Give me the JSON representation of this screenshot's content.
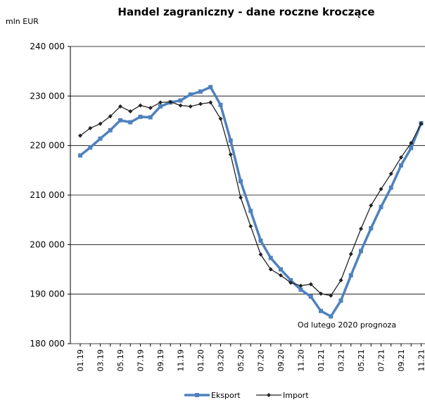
{
  "chart_data": {
    "type": "line",
    "title": "Handel zagraniczny - dane roczne kroczące",
    "y_label": "mln EUR",
    "annotation": "Od lutego 2020 prognoza",
    "categories": [
      "01.19",
      null,
      "03.19",
      null,
      "05.19",
      null,
      "07.19",
      null,
      "09.19",
      null,
      "11.19",
      null,
      "01.20",
      null,
      "03.20",
      null,
      "05.20",
      null,
      "07.20",
      null,
      "09.20",
      null,
      "11.20",
      null,
      "01.21",
      null,
      "03.21",
      null,
      "05.21",
      null,
      "07.21",
      null,
      "09.21",
      null,
      "11.21"
    ],
    "series": [
      {
        "name": "Eksport",
        "color": "#4f81bd",
        "values": [
          218000,
          219600,
          221400,
          223100,
          225100,
          224700,
          225800,
          225700,
          227900,
          228700,
          229100,
          230300,
          230900,
          231800,
          228200,
          221000,
          212800,
          206800,
          200800,
          197300,
          195000,
          192800,
          190900,
          189500,
          186600,
          185500,
          188700,
          193800,
          198700,
          203300,
          207600,
          211500,
          216000,
          219500,
          224500
        ]
      },
      {
        "name": "Import",
        "color": "#222222",
        "values": [
          222000,
          223500,
          224400,
          225900,
          227900,
          226900,
          228100,
          227600,
          228700,
          228800,
          228100,
          227900,
          228400,
          228700,
          225400,
          218200,
          209500,
          203700,
          198000,
          195000,
          193800,
          192300,
          191700,
          192000,
          190100,
          189700,
          192800,
          198100,
          203200,
          207900,
          211200,
          214300,
          217600,
          220500,
          224400
        ]
      }
    ],
    "ylim": [
      180000,
      240000
    ],
    "yticks": [
      {
        "value": 180000,
        "label": "180 000"
      },
      {
        "value": 190000,
        "label": "190 000"
      },
      {
        "value": 200000,
        "label": "200 000"
      },
      {
        "value": 210000,
        "label": "210 000"
      },
      {
        "value": 220000,
        "label": "220 000"
      },
      {
        "value": 230000,
        "label": "230 000"
      },
      {
        "value": 240000,
        "label": "240 000"
      }
    ],
    "grid": true
  }
}
